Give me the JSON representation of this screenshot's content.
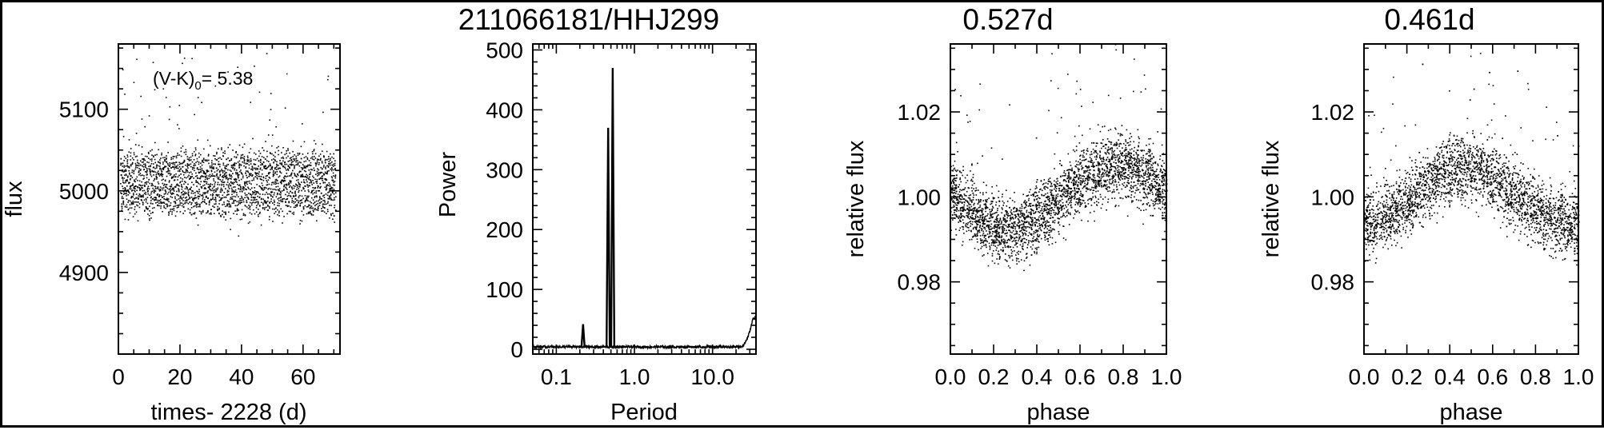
{
  "figure_title": "211066181/HHJ299",
  "chart_data": [
    {
      "panel": "light-curve",
      "type": "scatter",
      "title": "",
      "xlabel": "times- 2228 (d)",
      "ylabel": "flux",
      "xlim": [
        0,
        72
      ],
      "ylim": [
        4800,
        5180
      ],
      "xticks": [
        0,
        20,
        40,
        60
      ],
      "yticks": [
        4900,
        5000,
        5100
      ],
      "annotation": {
        "main": "(V-K)",
        "sub": "0",
        "value": "= 5.38"
      },
      "series": [
        {
          "mean_flux": 5010,
          "scatter_amplitude": 30,
          "time_start": 0.5,
          "time_end": 70.5
        }
      ]
    },
    {
      "panel": "periodogram",
      "type": "line",
      "title": "211066181/HHJ299",
      "xlabel": "Period",
      "ylabel": "Power",
      "xscale": "log",
      "xlim": [
        0.05,
        36
      ],
      "ylim": [
        -8,
        510
      ],
      "xticks": [
        0.1,
        1.0,
        10.0
      ],
      "xticklabels": [
        "0.1",
        "1.0",
        "10.0"
      ],
      "yticks": [
        0,
        100,
        200,
        300,
        400,
        500
      ],
      "peaks": [
        {
          "period": 0.22,
          "power": 42
        },
        {
          "period": 0.461,
          "power": 370
        },
        {
          "period": 0.527,
          "power": 470
        }
      ],
      "baseline_power": 4,
      "long_period_rise": {
        "period_start": 22,
        "period_end": 33,
        "power_end": 48
      }
    },
    {
      "panel": "phased-0.527d",
      "type": "scatter",
      "title": "0.527d",
      "period": 0.527,
      "xlabel": "phase",
      "ylabel": "relative flux",
      "xlim": [
        0,
        1.0
      ],
      "ylim": [
        0.963,
        1.036
      ],
      "xticks": [
        0.0,
        0.2,
        0.4,
        0.6,
        0.8,
        1.0
      ],
      "xticklabels": [
        "0.0",
        "0.2",
        "0.4",
        "0.6",
        "0.8",
        "1.0"
      ],
      "yticks": [
        0.98,
        1.0,
        1.02
      ],
      "yticklabels": [
        "0.98",
        "1.00",
        "1.02"
      ],
      "model": {
        "mean": 1.0,
        "amplitude": 0.0075,
        "phase_max": 0.77
      }
    },
    {
      "panel": "phased-0.461d",
      "type": "scatter",
      "title": "0.461d",
      "period": 0.461,
      "xlabel": "phase",
      "ylabel": "relative flux",
      "xlim": [
        0,
        1.0
      ],
      "ylim": [
        0.963,
        1.036
      ],
      "xticks": [
        0.0,
        0.2,
        0.4,
        0.6,
        0.8,
        1.0
      ],
      "xticklabels": [
        "0.0",
        "0.2",
        "0.4",
        "0.6",
        "0.8",
        "1.0"
      ],
      "yticks": [
        0.98,
        1.0,
        1.02
      ],
      "yticklabels": [
        "0.98",
        "1.00",
        "1.02"
      ],
      "model": {
        "mean": 1.0,
        "amplitude": 0.0065,
        "phase_max": 0.47
      }
    }
  ]
}
